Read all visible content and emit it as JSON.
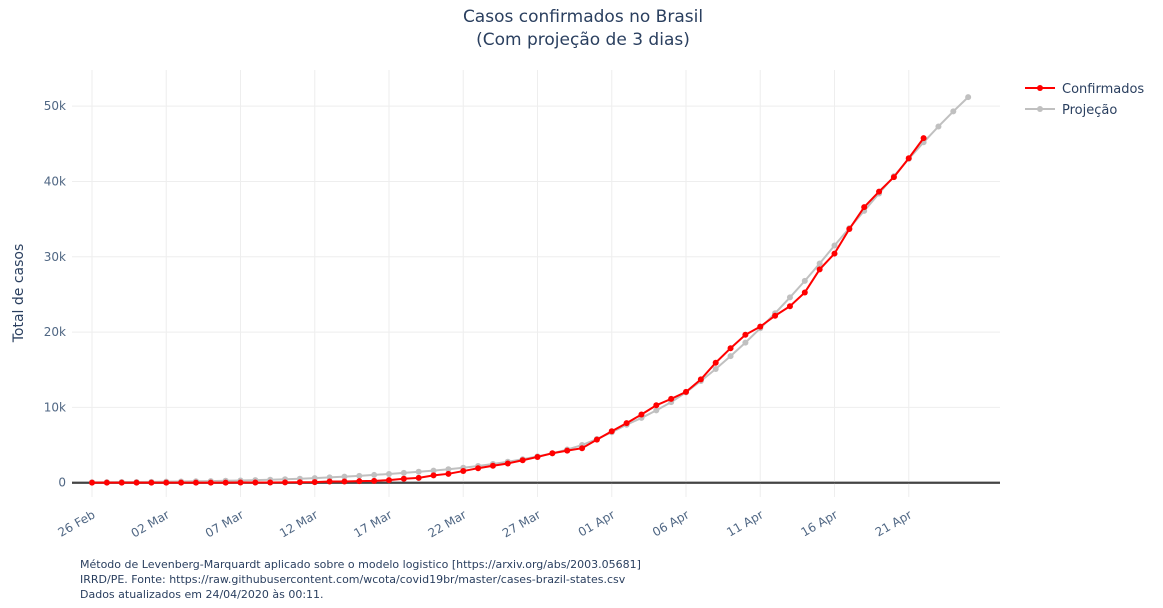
{
  "chart_data": {
    "type": "line",
    "title": "Casos confirmados no Brasil",
    "subtitle": "(Com projeção de 3 dias)",
    "y_label": "Total de casos",
    "x": [
      "26 Feb",
      "27 Feb",
      "28 Feb",
      "29 Feb",
      "01 Mar",
      "02 Mar",
      "03 Mar",
      "04 Mar",
      "05 Mar",
      "06 Mar",
      "07 Mar",
      "08 Mar",
      "09 Mar",
      "10 Mar",
      "11 Mar",
      "12 Mar",
      "13 Mar",
      "14 Mar",
      "15 Mar",
      "16 Mar",
      "17 Mar",
      "18 Mar",
      "19 Mar",
      "20 Mar",
      "21 Mar",
      "22 Mar",
      "23 Mar",
      "24 Mar",
      "25 Mar",
      "26 Mar",
      "27 Mar",
      "28 Mar",
      "29 Mar",
      "30 Mar",
      "31 Mar",
      "01 Apr",
      "02 Apr",
      "03 Apr",
      "04 Apr",
      "05 Apr",
      "06 Apr",
      "07 Apr",
      "08 Apr",
      "09 Apr",
      "10 Apr",
      "11 Apr",
      "12 Apr",
      "13 Apr",
      "14 Apr",
      "15 Apr",
      "16 Apr",
      "17 Apr",
      "18 Apr",
      "19 Apr",
      "20 Apr",
      "21 Apr",
      "22 Apr",
      "23 Apr",
      "24 Apr",
      "25 Apr"
    ],
    "xticks": [
      "26 Feb",
      "02 Mar",
      "07 Mar",
      "12 Mar",
      "17 Mar",
      "22 Mar",
      "27 Mar",
      "01 Apr",
      "06 Apr",
      "11 Apr",
      "16 Apr",
      "21 Apr"
    ],
    "ylim": [
      -1900,
      54800
    ],
    "yticks": [
      {
        "value": 0,
        "label": "0"
      },
      {
        "value": 10000,
        "label": "10k"
      },
      {
        "value": 20000,
        "label": "20k"
      },
      {
        "value": 30000,
        "label": "30k"
      },
      {
        "value": 40000,
        "label": "40k"
      },
      {
        "value": 50000,
        "label": "50k"
      }
    ],
    "grid": true,
    "legend": "top-right",
    "series": [
      {
        "name": "Confirmados",
        "color": "#ff0000",
        "values": [
          1,
          1,
          1,
          2,
          2,
          2,
          2,
          3,
          8,
          13,
          19,
          25,
          25,
          34,
          52,
          77,
          151,
          151,
          200,
          234,
          346,
          529,
          640,
          970,
          1178,
          1546,
          1924,
          2247,
          2554,
          2985,
          3417,
          3904,
          4256,
          4579,
          5717,
          6836,
          7910,
          9056,
          10278,
          11130,
          12056,
          13717,
          15927,
          17857,
          19638,
          20727,
          22169,
          23430,
          25262,
          28320,
          30425,
          33682,
          36599,
          38654,
          40581,
          43079,
          45757,
          null,
          null,
          null
        ]
      },
      {
        "name": "Projeção",
        "color": "#c0c0c0",
        "values": [
          60,
          70,
          85,
          100,
          115,
          135,
          160,
          185,
          215,
          250,
          290,
          340,
          395,
          460,
          530,
          610,
          700,
          800,
          910,
          1030,
          1160,
          1300,
          1450,
          1610,
          1790,
          1990,
          2220,
          2480,
          2780,
          3120,
          3500,
          3900,
          4400,
          5000,
          5800,
          6700,
          7700,
          8600,
          9600,
          10700,
          12000,
          13500,
          15100,
          16800,
          18600,
          20500,
          22500,
          24600,
          26800,
          29100,
          31500,
          33800,
          36100,
          38400,
          40700,
          43000,
          45200,
          47300,
          49300,
          51200
        ]
      }
    ],
    "notes": [
      "Método de Levenberg-Marquardt aplicado sobre o modelo logistico [https://arxiv.org/abs/2003.05681]",
      "IRRD/PE. Fonte: https://raw.githubusercontent.com/wcota/covid19br/master/cases-brazil-states.csv",
      "Dados atualizados em 24/04/2020 às 00:11."
    ]
  }
}
